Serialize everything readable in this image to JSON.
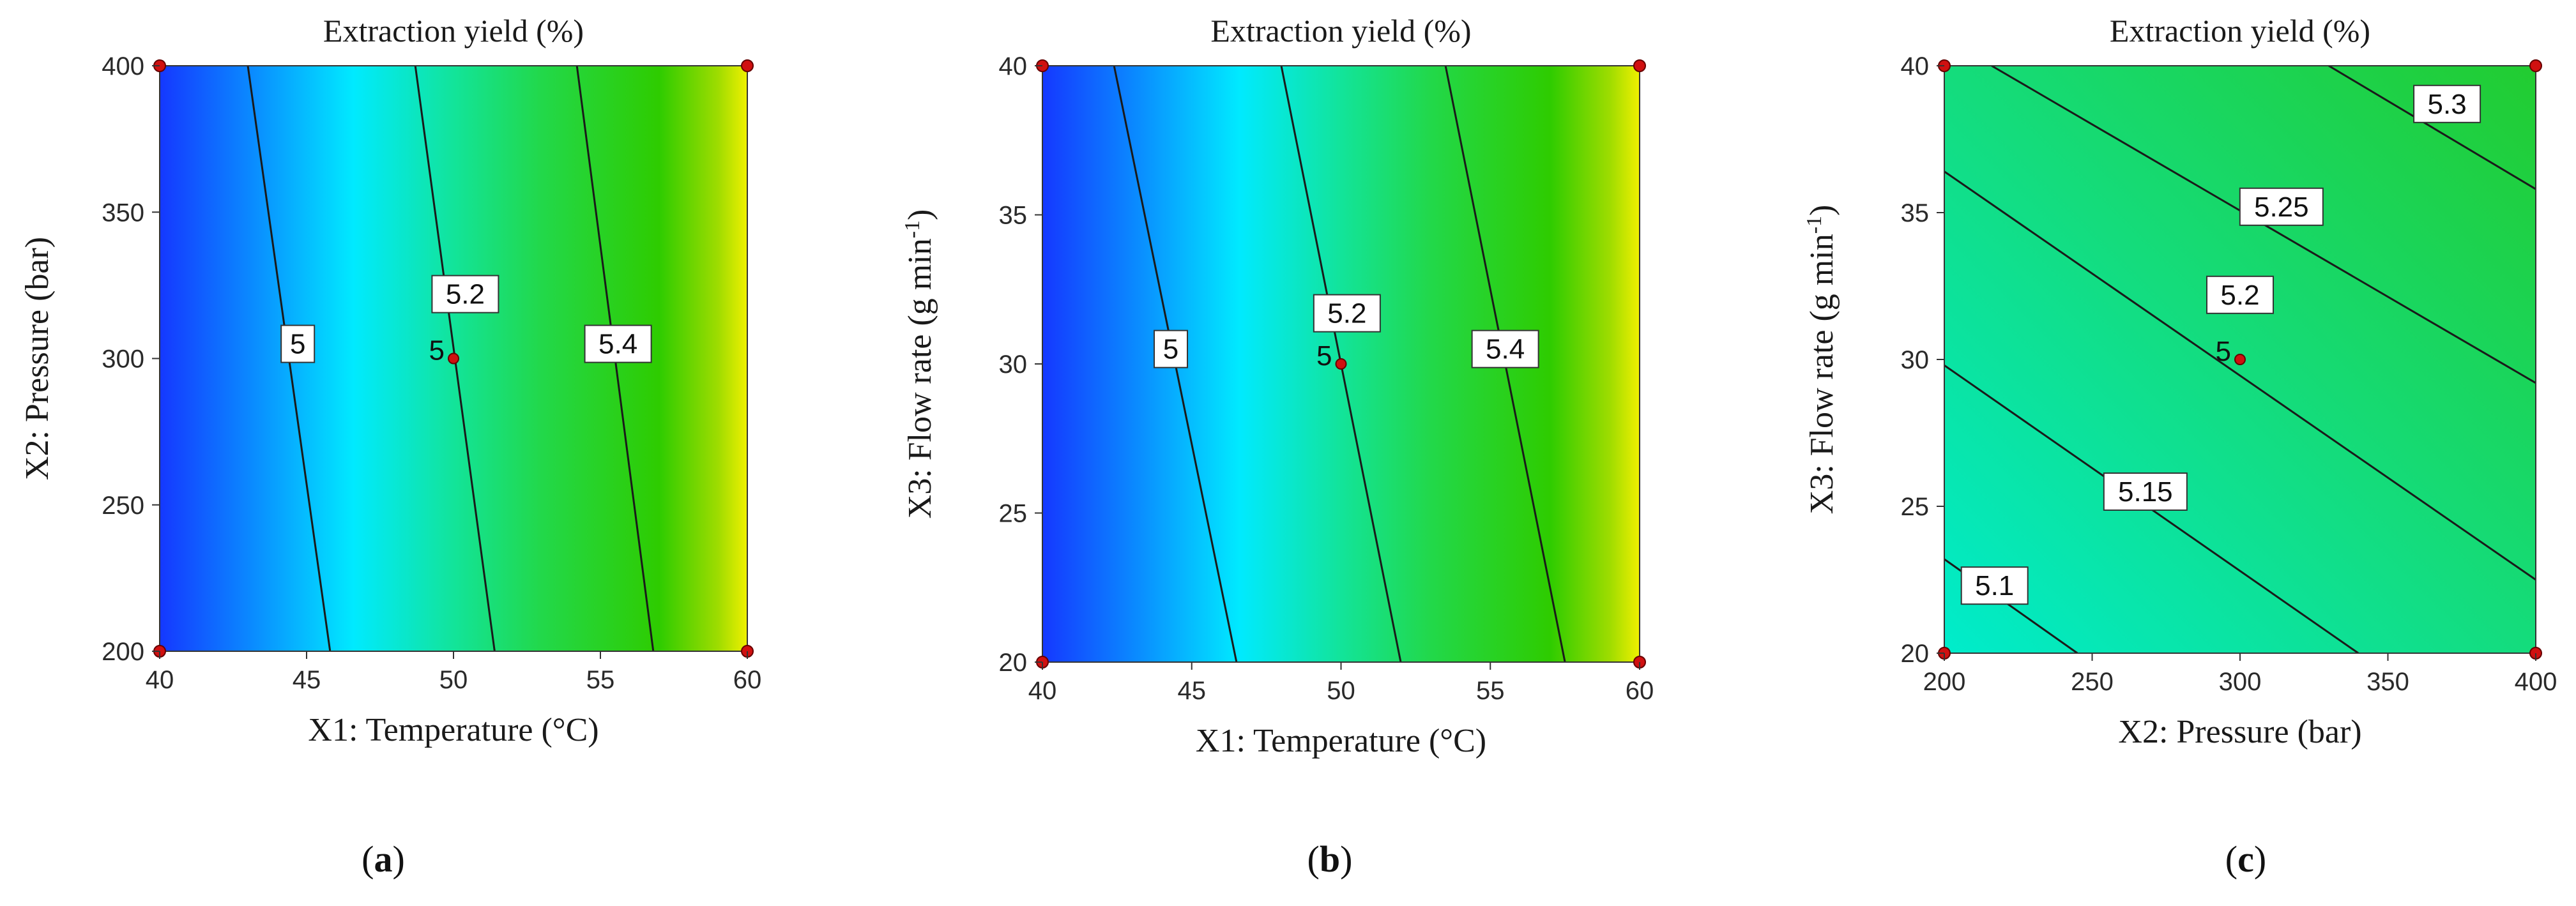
{
  "chart_data": [
    {
      "type": "contour",
      "caption": "a",
      "title": "Extraction yield (%)",
      "xlabel": "X1: Temperature (°C)",
      "ylabel": "X2: Pressure (bar)",
      "xlim": [
        40,
        60
      ],
      "ylim": [
        200,
        400
      ],
      "x_ticks": [
        40,
        45,
        50,
        55,
        60
      ],
      "y_ticks": [
        200,
        250,
        300,
        350,
        400
      ],
      "color_scale": [
        "#1a3cff",
        "#00e5ff",
        "#1fd85a",
        "#28c800",
        "#e6f000"
      ],
      "contours": [
        {
          "level": "5",
          "label": "5",
          "points": [
            [
              43,
              400
            ],
            [
              45.8,
              200
            ]
          ],
          "label_at": [
            44.7,
            305
          ]
        },
        {
          "level": "5.2",
          "label": "5.2",
          "points": [
            [
              48.7,
              400
            ],
            [
              51.4,
              200
            ]
          ],
          "label_at": [
            50.4,
            322
          ]
        },
        {
          "level": "5.4",
          "label": "5.4",
          "points": [
            [
              54.2,
              400
            ],
            [
              56.8,
              200
            ]
          ],
          "label_at": [
            55.6,
            305
          ]
        }
      ],
      "design_points": [
        {
          "x": 40,
          "y": 200
        },
        {
          "x": 40,
          "y": 400
        },
        {
          "x": 60,
          "y": 200
        },
        {
          "x": 60,
          "y": 400
        }
      ],
      "center_point": {
        "x": 50,
        "y": 300,
        "count": "5"
      }
    },
    {
      "type": "contour",
      "caption": "b",
      "title": "Extraction yield (%)",
      "xlabel": "X1: Temperature (°C)",
      "ylabel": "X3: Flow rate (g min",
      "ylabel_sup": "-1",
      "ylabel_end": ")",
      "xlim": [
        40,
        60
      ],
      "ylim": [
        20,
        40
      ],
      "x_ticks": [
        40,
        45,
        50,
        55,
        60
      ],
      "y_ticks": [
        20,
        25,
        30,
        35,
        40
      ],
      "color_scale": [
        "#1a3cff",
        "#00e5ff",
        "#1fd85a",
        "#28c800",
        "#e6f000"
      ],
      "contours": [
        {
          "level": "5",
          "label": "5",
          "points": [
            [
              42.4,
              40
            ],
            [
              46.5,
              20
            ]
          ],
          "label_at": [
            44.3,
            30.5
          ]
        },
        {
          "level": "5.2",
          "label": "5.2",
          "points": [
            [
              48,
              40
            ],
            [
              52,
              20
            ]
          ],
          "label_at": [
            50.2,
            31.7
          ]
        },
        {
          "level": "5.4",
          "label": "5.4",
          "points": [
            [
              53.5,
              40
            ],
            [
              57.5,
              20
            ]
          ],
          "label_at": [
            55.5,
            30.5
          ]
        }
      ],
      "design_points": [
        {
          "x": 40,
          "y": 20
        },
        {
          "x": 40,
          "y": 40
        },
        {
          "x": 60,
          "y": 20
        },
        {
          "x": 60,
          "y": 40
        }
      ],
      "center_point": {
        "x": 50,
        "y": 30,
        "count": "5"
      }
    },
    {
      "type": "contour",
      "caption": "c",
      "title": "Extraction yield (%)",
      "xlabel": "X2: Pressure (bar)",
      "ylabel": "X3: Flow rate (g min",
      "ylabel_sup": "-1",
      "ylabel_end": ")",
      "xlim": [
        200,
        400
      ],
      "ylim": [
        20,
        40
      ],
      "x_ticks": [
        200,
        250,
        300,
        350,
        400
      ],
      "y_ticks": [
        20,
        25,
        30,
        35,
        40
      ],
      "color_scale": [
        "#00e8c0",
        "#18d86e",
        "#22cc3c"
      ],
      "contours": [
        {
          "level": "5.1",
          "label": "5.1",
          "points": [
            [
              200,
              23.2
            ],
            [
              245,
              20
            ]
          ],
          "label_at": [
            217,
            22.3
          ]
        },
        {
          "level": "5.15",
          "label": "5.15",
          "points": [
            [
              200,
              29.8
            ],
            [
              340,
              20
            ]
          ],
          "label_at": [
            268,
            25.5
          ]
        },
        {
          "level": "5.2",
          "label": "5.2",
          "points": [
            [
              200,
              36.4
            ],
            [
              400,
              22.5
            ]
          ],
          "label_at": [
            300,
            32.2
          ]
        },
        {
          "level": "5.25",
          "label": "5.25",
          "points": [
            [
              216,
              40
            ],
            [
              400,
              29.2
            ]
          ],
          "label_at": [
            314,
            35.2
          ]
        },
        {
          "level": "5.3",
          "label": "5.3",
          "points": [
            [
              330,
              40
            ],
            [
              400,
              35.8
            ]
          ],
          "label_at": [
            370,
            38.7
          ]
        }
      ],
      "design_points": [
        {
          "x": 200,
          "y": 20
        },
        {
          "x": 200,
          "y": 40
        },
        {
          "x": 400,
          "y": 20
        },
        {
          "x": 400,
          "y": 40
        }
      ],
      "center_point": {
        "x": 300,
        "y": 30,
        "count": "5"
      }
    }
  ]
}
